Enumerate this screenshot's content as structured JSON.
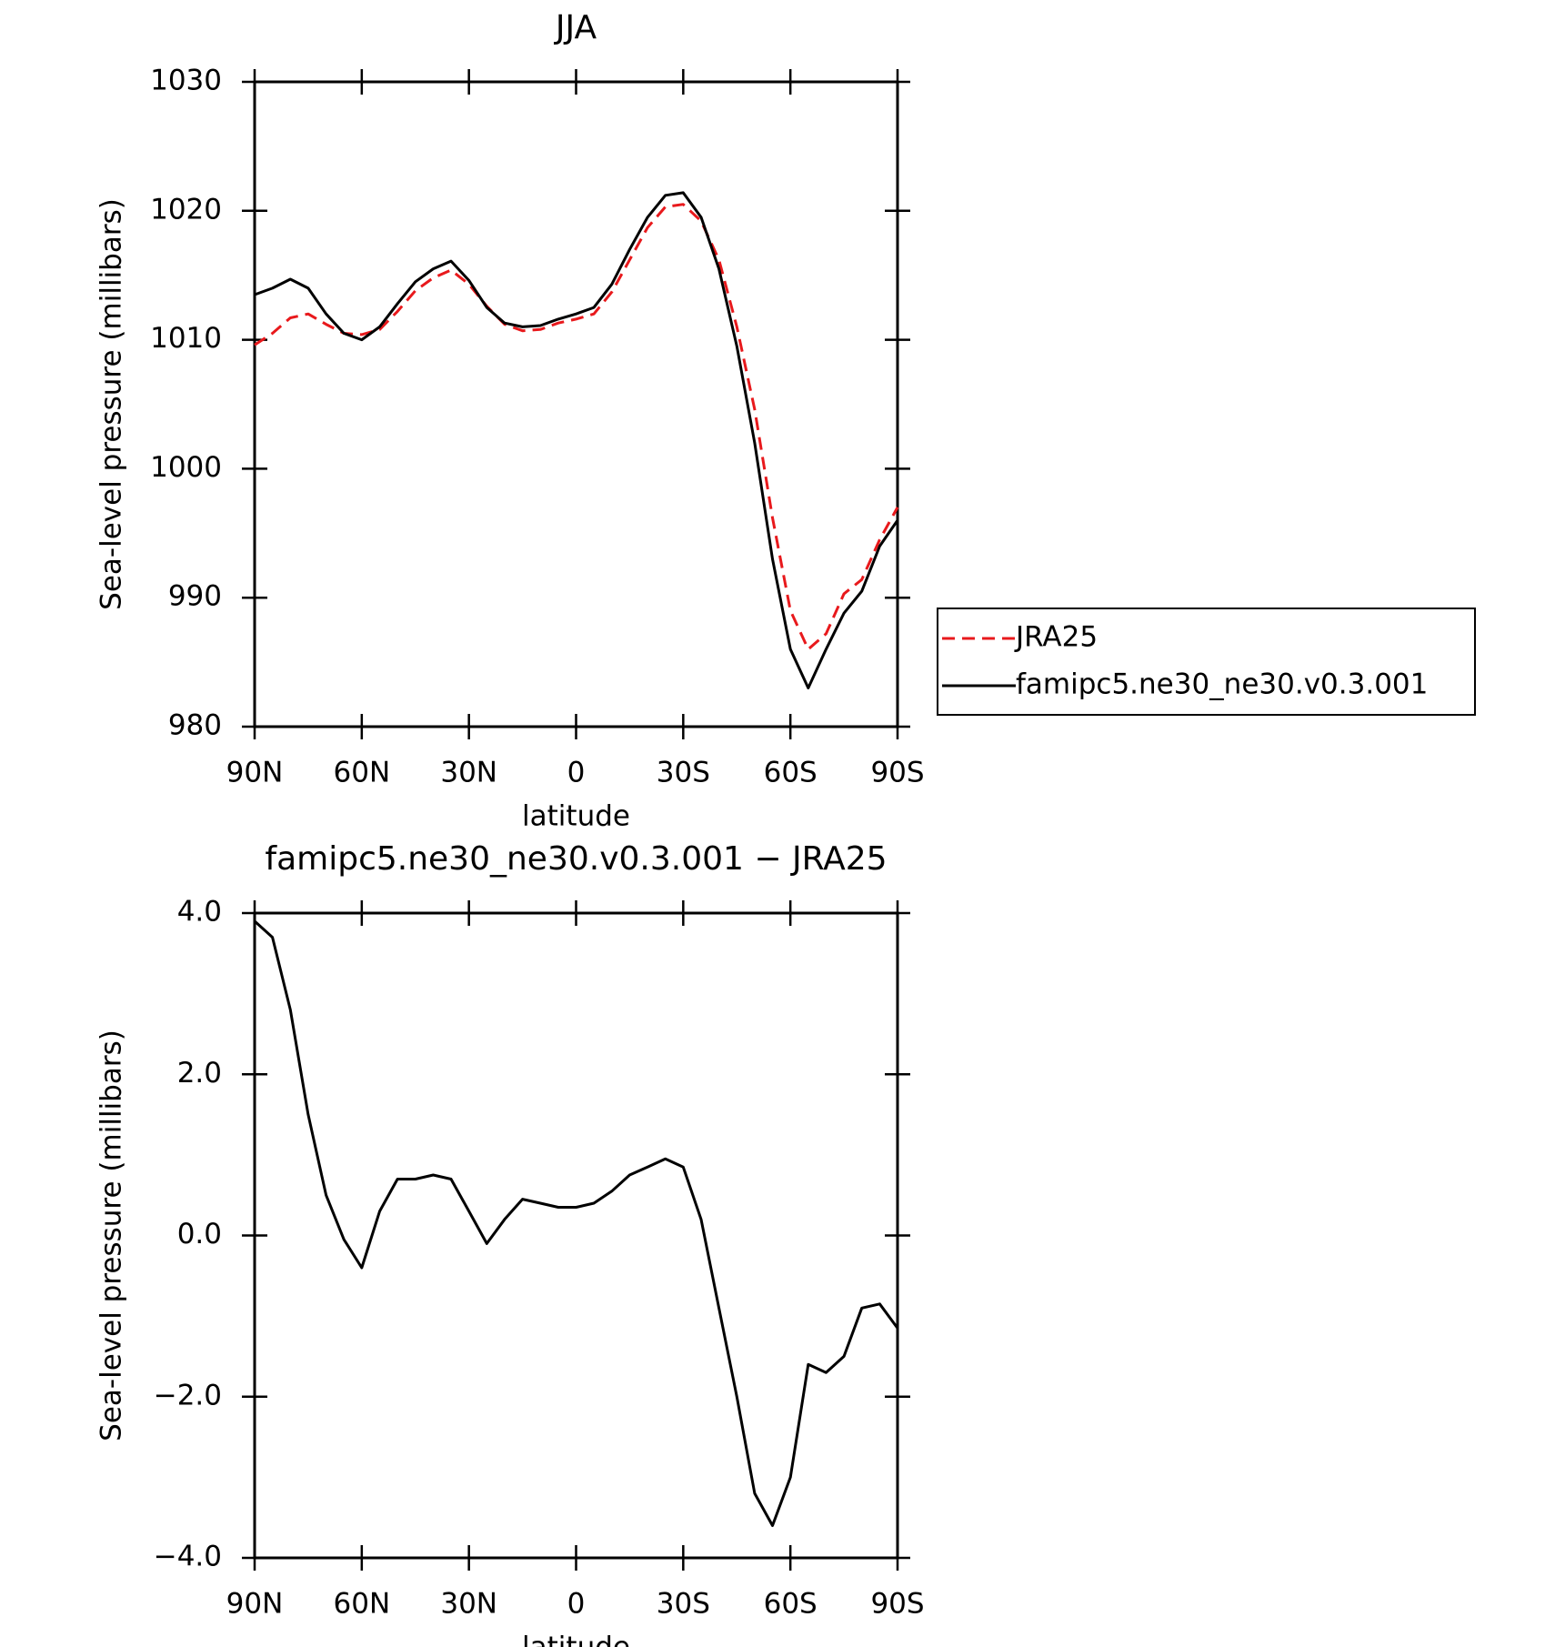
{
  "chart_data": [
    {
      "type": "line",
      "title": "JJA",
      "xlabel": "latitude",
      "ylabel": "Sea-level pressure (millibars)",
      "x": [
        90,
        85,
        80,
        75,
        70,
        65,
        60,
        55,
        50,
        45,
        40,
        35,
        30,
        25,
        20,
        15,
        10,
        5,
        0,
        -5,
        -10,
        -15,
        -20,
        -25,
        -30,
        -35,
        -40,
        -45,
        -50,
        -55,
        -60,
        -65,
        -70,
        -75,
        -80,
        -85,
        -90
      ],
      "series": [
        {
          "name": "JRA25",
          "color": "#e8191c",
          "linestyle": "dashed",
          "values": [
            1009.6,
            1010.5,
            1011.7,
            1012.0,
            1011.2,
            1010.5,
            1010.4,
            1010.8,
            1012.2,
            1013.8,
            1014.8,
            1015.4,
            1014.3,
            1012.6,
            1011.2,
            1010.7,
            1010.8,
            1011.3,
            1011.6,
            1012.0,
            1013.7,
            1016.2,
            1018.7,
            1020.3,
            1020.5,
            1019.2,
            1016.2,
            1011.0,
            1004.6,
            996.2,
            989.0,
            986.0,
            987.2,
            990.3,
            991.4,
            994.5,
            997.0
          ]
        },
        {
          "name": "famipc5.ne30_ne30.v0.3.001",
          "color": "#000000",
          "linestyle": "solid",
          "values": [
            1013.5,
            1014.0,
            1014.7,
            1014.0,
            1012.0,
            1010.5,
            1010.0,
            1011.0,
            1012.8,
            1014.5,
            1015.5,
            1016.1,
            1014.6,
            1012.5,
            1011.3,
            1011.0,
            1011.1,
            1011.6,
            1012.0,
            1012.5,
            1014.3,
            1017.0,
            1019.5,
            1021.2,
            1021.4,
            1019.5,
            1015.5,
            1009.5,
            1002.0,
            993.0,
            986.0,
            983.0,
            986.0,
            988.8,
            990.5,
            994.0,
            996.0
          ]
        }
      ],
      "xlim": [
        90,
        -90
      ],
      "xticks": [
        {
          "value": 90,
          "label": "90N"
        },
        {
          "value": 60,
          "label": "60N"
        },
        {
          "value": 30,
          "label": "30N"
        },
        0,
        {
          "value": -30,
          "label": "30S"
        },
        {
          "value": -60,
          "label": "60S"
        },
        {
          "value": -90,
          "label": "90S"
        }
      ],
      "ylim": [
        980,
        1030
      ],
      "yticks": [
        980,
        990,
        1000,
        1010,
        1020,
        1030
      ],
      "legend": "right",
      "grid": false
    },
    {
      "type": "line",
      "title": "famipc5.ne30_ne30.v0.3.001 − JRA25",
      "xlabel": "latitude",
      "ylabel": "Sea-level pressure (millibars)",
      "x": [
        90,
        85,
        80,
        75,
        70,
        65,
        60,
        55,
        50,
        45,
        40,
        35,
        30,
        25,
        20,
        15,
        10,
        5,
        0,
        -5,
        -10,
        -15,
        -20,
        -25,
        -30,
        -35,
        -40,
        -45,
        -50,
        -55,
        -60,
        -65,
        -70,
        -75,
        -80,
        -85,
        -90
      ],
      "values": [
        3.9,
        3.7,
        2.8,
        1.5,
        0.5,
        -0.05,
        -0.4,
        0.3,
        0.7,
        0.7,
        0.75,
        0.7,
        0.3,
        -0.1,
        0.2,
        0.45,
        0.4,
        0.35,
        0.35,
        0.4,
        0.55,
        0.75,
        0.85,
        0.95,
        0.85,
        0.2,
        -0.9,
        -2.0,
        -3.2,
        -3.6,
        -3.0,
        -1.6,
        -1.7,
        -1.5,
        -0.9,
        -0.85,
        -1.15
      ],
      "color": "#000000",
      "xlim": [
        90,
        -90
      ],
      "xticks": [
        {
          "value": 90,
          "label": "90N"
        },
        {
          "value": 60,
          "label": "60N"
        },
        {
          "value": 30,
          "label": "30N"
        },
        0,
        {
          "value": -30,
          "label": "30S"
        },
        {
          "value": -60,
          "label": "60S"
        },
        {
          "value": -90,
          "label": "90S"
        }
      ],
      "ylim": [
        -4,
        4
      ],
      "yticks": [
        {
          "value": -4,
          "label": "−4.0"
        },
        {
          "value": -2,
          "label": "−2.0"
        },
        {
          "value": 0,
          "label": "0.0"
        },
        {
          "value": 2,
          "label": "2.0"
        },
        {
          "value": 4,
          "label": "4.0"
        }
      ],
      "grid": false
    }
  ]
}
